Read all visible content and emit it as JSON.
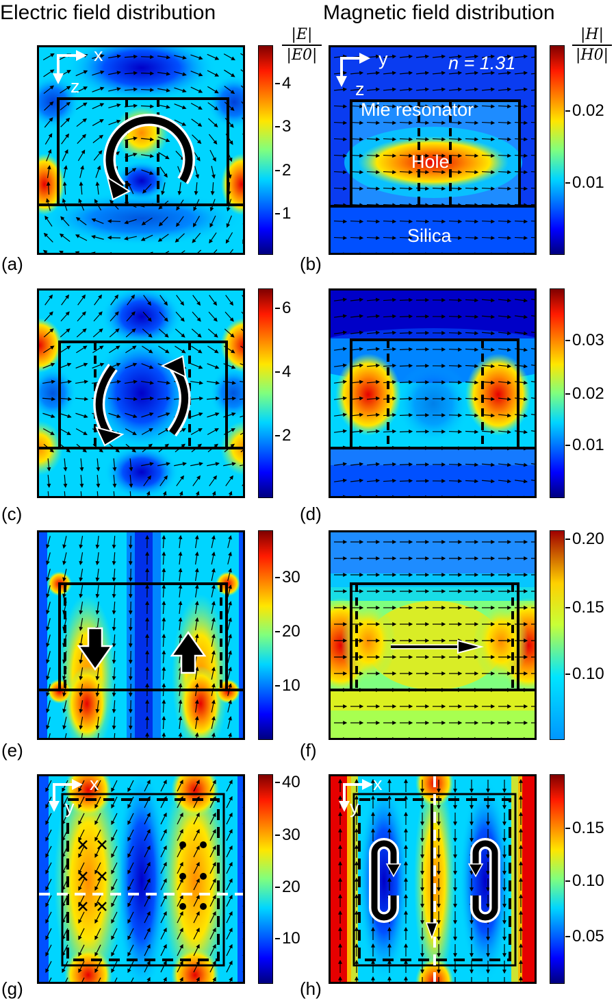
{
  "columns": {
    "electric_title": "Electric field distribution",
    "magnetic_title": "Magnetic field distribution"
  },
  "colorbars": {
    "electric_label_num": "|E|",
    "electric_label_den": "|E0|",
    "magnetic_label_num": "|H|",
    "magnetic_label_den": "|H0|",
    "a": [
      "4",
      "3",
      "2",
      "1"
    ],
    "b": [
      "0.02",
      "0.01"
    ],
    "c": [
      "6",
      "4",
      "2"
    ],
    "d": [
      "0.03",
      "0.02",
      "0.01"
    ],
    "e": [
      "30",
      "20",
      "10"
    ],
    "f": [
      "0.20",
      "0.15",
      "0.10"
    ],
    "g": [
      "40",
      "30",
      "20",
      "10"
    ],
    "h": [
      "0.15",
      "0.10",
      "0.05"
    ]
  },
  "panel_labels": [
    "(a)",
    "(b)",
    "(c)",
    "(d)",
    "(e)",
    "(f)",
    "(g)",
    "(h)"
  ],
  "annotations": {
    "axis_x": "x",
    "axis_y": "y",
    "axis_z": "z",
    "refractive_index": "n = 1.31",
    "mie_resonator": "Mie resonator",
    "hole": "Hole",
    "silica": "Silica"
  },
  "colors": {
    "jet_dark_blue": "#00007f",
    "jet_blue": "#0050ff",
    "jet_cyan": "#00d5ff",
    "jet_yellow": "#ffe600",
    "jet_red": "#e60000",
    "jet_dark_red": "#7f0000"
  }
}
